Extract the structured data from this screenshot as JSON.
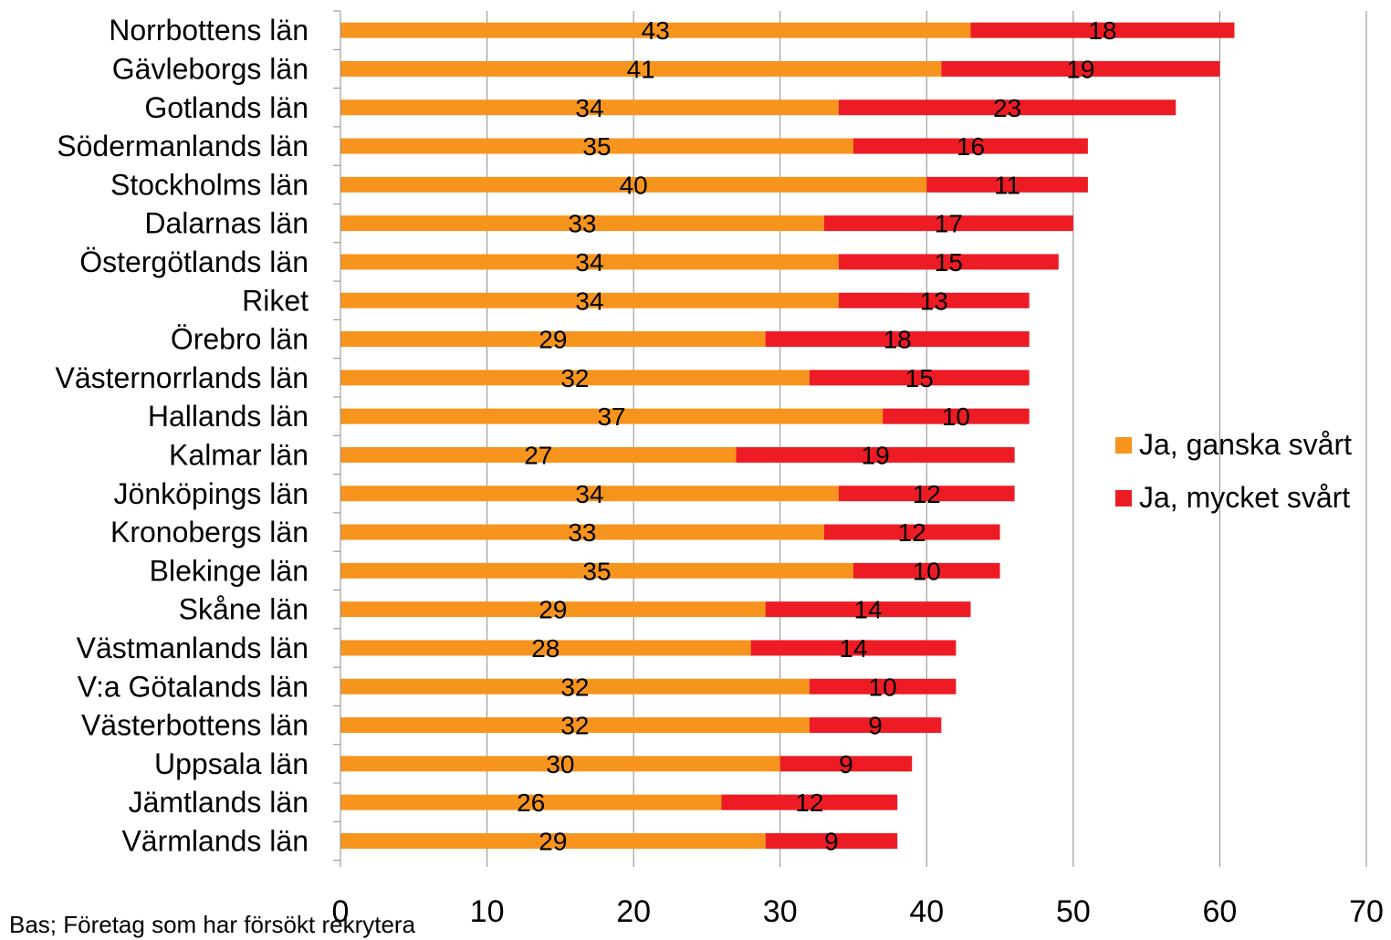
{
  "chart_data": {
    "type": "bar",
    "orientation": "horizontal",
    "stacked": true,
    "categories": [
      "Norrbottens län",
      "Gävleborgs län",
      "Gotlands län",
      "Södermanlands län",
      "Stockholms län",
      "Dalarnas län",
      "Östergötlands län",
      "Riket",
      "Örebro län",
      "Västernorrlands län",
      "Hallands län",
      "Kalmar län",
      "Jönköpings län",
      "Kronobergs län",
      "Blekinge län",
      "Skåne län",
      "Västmanlands län",
      "V:a Götalands län",
      "Västerbottens län",
      "Uppsala län",
      "Jämtlands län",
      "Värmlands län"
    ],
    "series": [
      {
        "name": "Ja, ganska svårt",
        "color": "#f7941d",
        "values": [
          43,
          41,
          34,
          35,
          40,
          33,
          34,
          34,
          29,
          32,
          37,
          27,
          34,
          33,
          35,
          29,
          28,
          32,
          32,
          30,
          26,
          29
        ]
      },
      {
        "name": "Ja, mycket svårt",
        "color": "#ed1c24",
        "values": [
          18,
          19,
          23,
          16,
          11,
          17,
          15,
          13,
          18,
          15,
          10,
          19,
          12,
          12,
          10,
          14,
          14,
          10,
          9,
          9,
          12,
          9
        ]
      }
    ],
    "xlim": [
      0,
      70
    ],
    "xticks": [
      "0",
      "10",
      "20",
      "30",
      "40",
      "50",
      "60",
      "70"
    ],
    "grid": true,
    "legend_position": "right",
    "title": "",
    "xlabel": "",
    "ylabel": ""
  },
  "footnote": "Bas; Företag som har försökt rekrytera"
}
